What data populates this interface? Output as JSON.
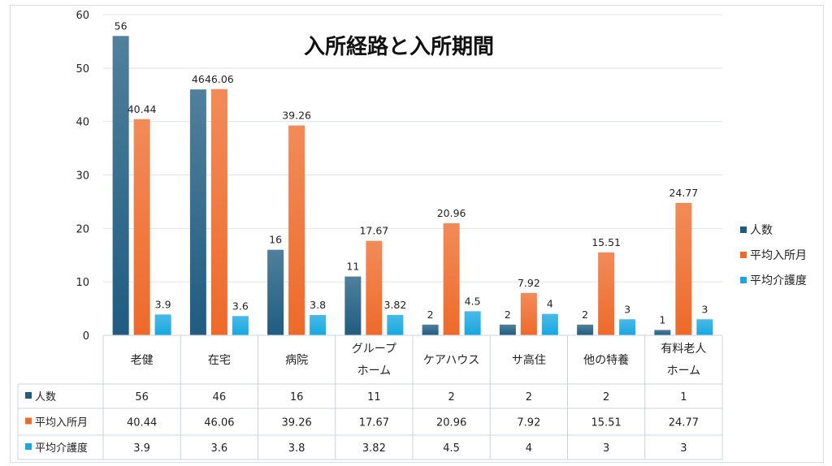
{
  "chart_data": {
    "type": "bar",
    "title": "入所経路と入所期間",
    "categories": [
      [
        "老健"
      ],
      [
        "在宅"
      ],
      [
        "病院"
      ],
      [
        "グループ",
        "ホーム"
      ],
      [
        "ケアハウス"
      ],
      [
        "サ高住"
      ],
      [
        "他の特養"
      ],
      [
        "有料老人",
        "ホーム"
      ]
    ],
    "series": [
      {
        "name": "人数",
        "values": [
          56,
          46,
          16,
          11,
          2,
          2,
          2,
          1
        ],
        "color": "#1f5c80"
      },
      {
        "name": "平均入所月",
        "values": [
          40.44,
          46.06,
          39.26,
          17.67,
          20.96,
          7.92,
          15.51,
          24.77
        ],
        "color": "#ee6a2a"
      },
      {
        "name": "平均介護度",
        "values": [
          3.9,
          3.6,
          3.8,
          3.82,
          4.5,
          4,
          3,
          3
        ],
        "color": "#17a7e0"
      }
    ],
    "ylim": [
      0,
      60
    ],
    "yticks": [
      0,
      10,
      20,
      30,
      40,
      50,
      60
    ],
    "grid": true,
    "legend": "right",
    "data_table": true
  }
}
